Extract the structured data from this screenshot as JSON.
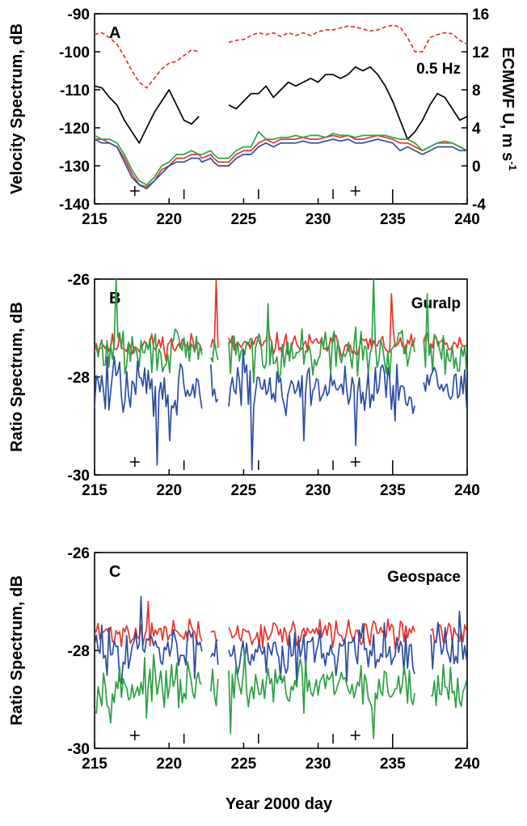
{
  "xlabel": "Year 2000 day",
  "chart_data": [
    {
      "type": "line",
      "panel_label": "A",
      "annotation": "0.5 Hz",
      "xlim": [
        215,
        240
      ],
      "x_ticks": [
        215,
        220,
        225,
        230,
        235,
        240
      ],
      "ylabel": "Velocity Spectrum, dB",
      "ylim": [
        -140,
        -90
      ],
      "y_ticks": [
        -140,
        -130,
        -120,
        -110,
        -100,
        -90
      ],
      "y2label": "ECMWF U, m s",
      "y2label_sup": "-1",
      "y2lim": [
        -4,
        16
      ],
      "y2_ticks": [
        -4,
        0,
        4,
        8,
        12,
        16
      ],
      "markers_x": [
        217.7,
        232.5
      ],
      "event_ticks_x": [
        221,
        226,
        231,
        235
      ],
      "gaps": [
        [
          222.2,
          222.8
        ],
        [
          223.3,
          224.0
        ]
      ],
      "series": [
        {
          "color": "#e8332a",
          "dashed": true,
          "axis": "right",
          "x": [
            215,
            215.5,
            216,
            216.5,
            217,
            217.5,
            218,
            218.5,
            219,
            219.5,
            220,
            220.5,
            221,
            221.5,
            222,
            222.5,
            223,
            223.5,
            224,
            224.5,
            225,
            225.5,
            226,
            226.5,
            227,
            227.5,
            228,
            228.5,
            229,
            229.5,
            230,
            230.5,
            231,
            231.5,
            232,
            232.5,
            233,
            233.5,
            234,
            234.5,
            235,
            235.5,
            236,
            236.5,
            237,
            237.5,
            238,
            238.5,
            239,
            239.5,
            240
          ],
          "y": [
            13.8,
            14.0,
            13.5,
            12.8,
            11.5,
            10.0,
            8.8,
            8.2,
            9.2,
            10.2,
            10.8,
            11.0,
            11.6,
            12.2,
            12.0,
            12.5,
            11.4,
            12.2,
            13.0,
            13.2,
            13.3,
            13.7,
            14.0,
            13.8,
            14.0,
            13.6,
            14.0,
            13.7,
            14.0,
            13.7,
            14.1,
            14.3,
            14.3,
            14.5,
            14.7,
            14.6,
            14.4,
            14.2,
            14.3,
            14.6,
            14.8,
            14.6,
            13.5,
            12.0,
            12.0,
            13.5,
            13.8,
            14.0,
            13.9,
            13.2,
            12.8
          ]
        },
        {
          "color": "#000000",
          "axis": "left",
          "x": [
            215,
            215.5,
            216,
            216.5,
            217,
            217.5,
            218,
            218.5,
            219,
            219.5,
            220,
            220.5,
            221,
            221.5,
            222,
            222.5,
            223,
            223.5,
            224,
            224.5,
            225,
            225.5,
            226,
            226.5,
            227,
            227.5,
            228,
            228.5,
            229,
            229.5,
            230,
            230.5,
            231,
            231.5,
            232,
            232.5,
            233,
            233.5,
            234,
            234.5,
            235,
            235.5,
            236,
            236.5,
            237,
            237.5,
            238,
            238.5,
            239,
            239.5,
            240
          ],
          "y": [
            -109,
            -109.5,
            -112,
            -114,
            -118,
            -121,
            -124,
            -120,
            -116,
            -113,
            -110,
            -114,
            -118,
            -119,
            -117,
            -118,
            -115,
            -116,
            -114,
            -115,
            -113,
            -111,
            -111,
            -109,
            -112,
            -110,
            -108,
            -109,
            -108,
            -107,
            -108,
            -106,
            -106,
            -107,
            -106,
            -104,
            -105,
            -104,
            -106,
            -109,
            -113,
            -118,
            -123,
            -121,
            -118,
            -114,
            -111,
            -112,
            -115,
            -118,
            -117
          ]
        },
        {
          "color": "#e8332a",
          "axis": "left",
          "x": [
            215,
            215.5,
            216,
            216.5,
            217,
            217.5,
            218,
            218.5,
            219,
            219.5,
            220,
            220.5,
            221,
            221.5,
            222,
            222.2,
            222.8,
            223.0,
            223.3,
            224.0,
            224.5,
            225,
            225.5,
            226,
            226.5,
            227,
            227.5,
            228,
            228.5,
            229,
            229.5,
            230,
            230.5,
            231,
            231.5,
            232,
            232.5,
            233,
            233.5,
            234,
            234.5,
            235,
            235.5,
            236,
            236.5,
            237,
            237.5,
            238,
            238.5,
            239,
            239.5,
            240
          ],
          "y": [
            -123,
            -123,
            -124,
            -125,
            -128,
            -132,
            -135,
            -135.5,
            -134,
            -131,
            -130,
            -128,
            -128,
            -127,
            -127,
            -128,
            -127,
            -128,
            -129,
            -129,
            -127,
            -126,
            -126,
            -124,
            -123,
            -124,
            -123,
            -123,
            -123,
            -122.5,
            -123,
            -123,
            -122.5,
            -122,
            -122.5,
            -122,
            -123,
            -123,
            -122.5,
            -122,
            -122.5,
            -123,
            -124,
            -124,
            -125,
            -126,
            -125,
            -124,
            -124,
            -124,
            -125,
            -126
          ]
        },
        {
          "color": "#2ea043",
          "axis": "left",
          "x": [
            215,
            215.5,
            216,
            216.5,
            217,
            217.5,
            218,
            218.5,
            219,
            219.5,
            220,
            220.5,
            221,
            221.5,
            222,
            222.2,
            222.8,
            223.0,
            223.3,
            224.0,
            224.5,
            225,
            225.5,
            226,
            226.5,
            227,
            227.5,
            228,
            228.5,
            229,
            229.5,
            230,
            230.5,
            231,
            231.5,
            232,
            232.5,
            233,
            233.5,
            234,
            234.5,
            235,
            235.5,
            236,
            236.5,
            237,
            237.5,
            238,
            238.5,
            239,
            239.5,
            240
          ],
          "y": [
            -122,
            -123,
            -123,
            -124,
            -127,
            -131,
            -134,
            -135,
            -133,
            -130,
            -129,
            -127,
            -127,
            -126,
            -127,
            -127,
            -126,
            -127,
            -128,
            -128,
            -126,
            -125,
            -125,
            -121,
            -123,
            -123,
            -122.5,
            -122.5,
            -122,
            -122.5,
            -122,
            -122,
            -122.5,
            -121.5,
            -122,
            -122,
            -122.5,
            -122,
            -122,
            -122,
            -122,
            -122.5,
            -123,
            -123,
            -124,
            -126,
            -125,
            -124,
            -123.5,
            -124,
            -125,
            -126
          ]
        },
        {
          "color": "#2c4fa3",
          "axis": "left",
          "x": [
            215,
            215.5,
            216,
            216.5,
            217,
            217.5,
            218,
            218.5,
            219,
            219.5,
            220,
            220.5,
            221,
            221.5,
            222,
            222.2,
            222.8,
            223.0,
            223.3,
            224.0,
            224.5,
            225,
            225.5,
            226,
            226.5,
            227,
            227.5,
            228,
            228.5,
            229,
            229.5,
            230,
            230.5,
            231,
            231.5,
            232,
            232.5,
            233,
            233.5,
            234,
            234.5,
            235,
            235.5,
            236,
            236.5,
            237,
            237.5,
            238,
            238.5,
            239,
            239.5,
            240
          ],
          "y": [
            -123,
            -124,
            -124,
            -125,
            -129,
            -133,
            -135,
            -136,
            -134,
            -132,
            -130,
            -129,
            -129,
            -128,
            -128,
            -129,
            -128,
            -129,
            -130,
            -130,
            -128,
            -127,
            -127,
            -125,
            -124,
            -125,
            -124,
            -124,
            -124,
            -123.5,
            -124,
            -124,
            -123.5,
            -123,
            -123.5,
            -123,
            -124,
            -124,
            -123.5,
            -123,
            -123.5,
            -124,
            -126,
            -125,
            -126,
            -127,
            -126,
            -125,
            -125,
            -125,
            -126,
            -126
          ]
        }
      ]
    },
    {
      "type": "line",
      "panel_label": "B",
      "annotation": "Guralp",
      "xlim": [
        215,
        240
      ],
      "x_ticks": [
        215,
        220,
        225,
        230,
        235,
        240
      ],
      "ylabel": "Ratio Spectrum, dB",
      "ylim": [
        -30,
        -26
      ],
      "y_ticks": [
        -30,
        -28,
        -26
      ],
      "markers_x": [
        217.7,
        232.5
      ],
      "event_ticks_x": [
        221,
        226,
        231,
        235
      ],
      "gaps": [
        [
          222.2,
          222.8
        ],
        [
          223.3,
          224.0
        ],
        [
          236.5,
          237.0
        ]
      ],
      "series": [
        {
          "color": "#e8332a",
          "base": -27.35,
          "amp": 0.35,
          "seed": 11,
          "spikes": [
            [
              223.2,
              -26.0
            ],
            [
              226.7,
              -26.9
            ],
            [
              234.9,
              -26.3
            ]
          ]
        },
        {
          "color": "#2ea043",
          "base": -27.5,
          "amp": 0.7,
          "seed": 29,
          "spikes": [
            [
              216.4,
              -26.0
            ],
            [
              226.7,
              -26.5
            ],
            [
              233.7,
              -26.0
            ],
            [
              237.3,
              -26.3
            ]
          ]
        },
        {
          "color": "#2c4fa3",
          "base": -28.2,
          "amp": 0.9,
          "seed": 47,
          "spikes": [
            [
              219.2,
              -29.8
            ],
            [
              220.0,
              -29.3
            ],
            [
              225.6,
              -29.9
            ],
            [
              232.5,
              -29.4
            ],
            [
              229.0,
              -29.3
            ]
          ]
        }
      ]
    },
    {
      "type": "line",
      "panel_label": "C",
      "annotation": "Geospace",
      "xlim": [
        215,
        240
      ],
      "x_ticks": [
        215,
        220,
        225,
        230,
        235,
        240
      ],
      "ylabel": "Ratio Spectrum, dB",
      "ylim": [
        -30,
        -26
      ],
      "y_ticks": [
        -30,
        -28,
        -26
      ],
      "markers_x": [
        217.7,
        232.5
      ],
      "event_ticks_x": [
        221,
        226,
        231,
        235
      ],
      "gaps": [
        [
          222.2,
          222.8
        ],
        [
          223.3,
          224.0
        ],
        [
          236.5,
          237.5
        ]
      ],
      "series": [
        {
          "color": "#e8332a",
          "base": -27.65,
          "amp": 0.4,
          "seed": 71,
          "spikes": [
            [
              218.6,
              -27.0
            ]
          ]
        },
        {
          "color": "#2c4fa3",
          "base": -28.0,
          "amp": 0.75,
          "seed": 83,
          "spikes": [
            [
              218.1,
              -26.9
            ],
            [
              239.5,
              -27.2
            ]
          ]
        },
        {
          "color": "#2ea043",
          "base": -28.75,
          "amp": 0.75,
          "seed": 97,
          "spikes": [
            [
              224.1,
              -29.7
            ],
            [
              233.7,
              -29.8
            ]
          ]
        }
      ]
    }
  ]
}
